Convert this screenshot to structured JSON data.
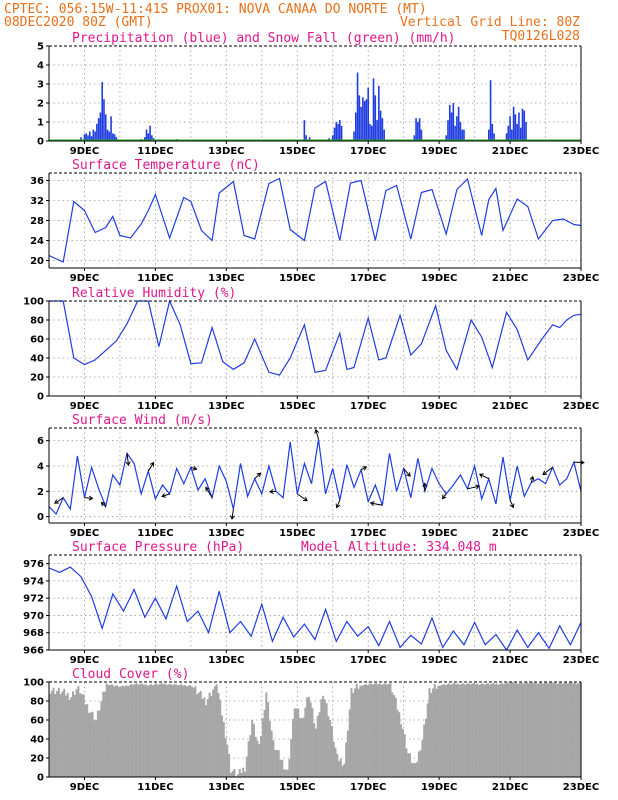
{
  "header": {
    "line1_left": "CPTEC:  056:15W-11:41S  PROX01: NOVA CANAA DO NORTE (MT)",
    "line2_left": "08DEC2020 80Z (GMT)",
    "line2_right": "Vertical Grid Line: 80Z",
    "line3_right": "TQ0126L028"
  },
  "colors": {
    "header": "#e8701a",
    "panel_title": "#e0178c",
    "series": "#1f3de0",
    "snow": "#22aa22",
    "cloud": "#a6a6a6"
  },
  "chart_data": [
    {
      "type": "bar",
      "id": "precip",
      "title": "Precipitation (blue) and Snow Fall (green) (mm/h)",
      "ylim": [
        0,
        5
      ],
      "yticks": [
        0,
        1,
        2,
        3,
        4,
        5
      ],
      "xticks": [
        "9DEC",
        "11DEC",
        "13DEC",
        "15DEC",
        "17DEC",
        "19DEC",
        "21DEC",
        "23DEC"
      ],
      "series": [
        {
          "name": "Precipitation",
          "points": [
            [
              0.8,
              0.05
            ],
            [
              0.9,
              0.2
            ],
            [
              1.0,
              0.35
            ],
            [
              1.05,
              0.4
            ],
            [
              1.1,
              0.3
            ],
            [
              1.15,
              0.5
            ],
            [
              1.2,
              0.25
            ],
            [
              1.25,
              0.6
            ],
            [
              1.3,
              0.5
            ],
            [
              1.35,
              0.9
            ],
            [
              1.4,
              1.2
            ],
            [
              1.45,
              1.5
            ],
            [
              1.5,
              3.1
            ],
            [
              1.55,
              2.2
            ],
            [
              1.6,
              1.4
            ],
            [
              1.65,
              0.6
            ],
            [
              1.7,
              0.5
            ],
            [
              1.75,
              1.3
            ],
            [
              1.8,
              0.4
            ],
            [
              1.85,
              0.35
            ],
            [
              1.9,
              0.2
            ],
            [
              2.6,
              0.1
            ],
            [
              2.7,
              0.2
            ],
            [
              2.75,
              0.6
            ],
            [
              2.8,
              0.4
            ],
            [
              2.85,
              0.8
            ],
            [
              2.9,
              0.3
            ],
            [
              2.95,
              0.15
            ],
            [
              3.6,
              0.1
            ],
            [
              3.7,
              0.05
            ],
            [
              4.1,
              0.05
            ],
            [
              7.2,
              1.1
            ],
            [
              7.25,
              0.3
            ],
            [
              7.35,
              0.2
            ],
            [
              7.9,
              0.15
            ],
            [
              8.0,
              0.3
            ],
            [
              8.05,
              0.7
            ],
            [
              8.1,
              1.0
            ],
            [
              8.15,
              0.9
            ],
            [
              8.2,
              1.1
            ],
            [
              8.25,
              0.8
            ],
            [
              8.6,
              0.5
            ],
            [
              8.65,
              1.5
            ],
            [
              8.7,
              3.6
            ],
            [
              8.75,
              2.4
            ],
            [
              8.8,
              1.8
            ],
            [
              8.85,
              2.3
            ],
            [
              8.9,
              2.1
            ],
            [
              8.95,
              2.2
            ],
            [
              9.0,
              2.8
            ],
            [
              9.05,
              0.9
            ],
            [
              9.1,
              0.8
            ],
            [
              9.15,
              3.3
            ],
            [
              9.2,
              2.4
            ],
            [
              9.25,
              1.1
            ],
            [
              9.3,
              2.9
            ],
            [
              9.35,
              1.6
            ],
            [
              9.4,
              1.2
            ],
            [
              9.45,
              0.6
            ],
            [
              10.3,
              0.3
            ],
            [
              10.35,
              1.2
            ],
            [
              10.4,
              1.0
            ],
            [
              10.45,
              1.2
            ],
            [
              10.5,
              0.6
            ],
            [
              11.2,
              0.3
            ],
            [
              11.25,
              1.1
            ],
            [
              11.3,
              1.9
            ],
            [
              11.35,
              1.5
            ],
            [
              11.4,
              2.0
            ],
            [
              11.45,
              0.8
            ],
            [
              11.5,
              1.3
            ],
            [
              11.55,
              1.8
            ],
            [
              11.6,
              1.0
            ],
            [
              11.65,
              0.6
            ],
            [
              11.7,
              0.6
            ],
            [
              12.4,
              0.6
            ],
            [
              12.45,
              3.2
            ],
            [
              12.5,
              0.9
            ],
            [
              12.55,
              0.4
            ],
            [
              12.9,
              0.4
            ],
            [
              12.95,
              0.8
            ],
            [
              13.0,
              1.3
            ],
            [
              13.05,
              0.6
            ],
            [
              13.1,
              1.8
            ],
            [
              13.15,
              1.4
            ],
            [
              13.2,
              0.9
            ],
            [
              13.25,
              1.5
            ],
            [
              13.3,
              0.7
            ],
            [
              13.35,
              1.7
            ],
            [
              13.4,
              1.6
            ],
            [
              13.45,
              1.0
            ]
          ]
        },
        {
          "name": "Snow Fall",
          "points": [
            [
              0.0,
              0.04
            ],
            [
              15.0,
              0.04
            ]
          ]
        }
      ]
    },
    {
      "type": "line",
      "id": "temperature",
      "title": "Surface Temperature (nC)",
      "ylim": [
        18.5,
        37.5
      ],
      "yticks": [
        20,
        24,
        28,
        32,
        36
      ],
      "xticks": [
        "9DEC",
        "11DEC",
        "13DEC",
        "15DEC",
        "17DEC",
        "19DEC",
        "21DEC",
        "23DEC"
      ],
      "x": [
        0,
        0.4,
        0.7,
        1.0,
        1.3,
        1.6,
        1.8,
        2.0,
        2.3,
        2.6,
        2.8,
        3.0,
        3.4,
        3.8,
        4.0,
        4.3,
        4.6,
        4.8,
        5.2,
        5.5,
        5.8,
        6.2,
        6.5,
        6.8,
        7.2,
        7.5,
        7.8,
        8.2,
        8.5,
        8.8,
        9.2,
        9.5,
        9.8,
        10.2,
        10.5,
        10.8,
        11.2,
        11.5,
        11.8,
        12.2,
        12.4,
        12.6,
        12.8,
        13.2,
        13.5,
        13.8,
        14.2,
        14.5,
        14.8,
        15.0
      ],
      "y": [
        21,
        19.7,
        31.8,
        30,
        25.6,
        26.6,
        28.8,
        25,
        24.5,
        27.3,
        30,
        33.2,
        24.5,
        32.6,
        31.8,
        26,
        24,
        33.5,
        35.8,
        25,
        24.3,
        35.4,
        36.4,
        26.2,
        24,
        34.5,
        35.8,
        24,
        35.5,
        36,
        24,
        34,
        35,
        24.3,
        33.6,
        34.2,
        25.3,
        34.2,
        36.3,
        25,
        32.2,
        34.4,
        26,
        32.3,
        30.8,
        24.3,
        28,
        28.3,
        27.2,
        27
      ]
    },
    {
      "type": "line",
      "id": "humidity",
      "title": "Relative Humidity (%)",
      "ylim": [
        0,
        100
      ],
      "yticks": [
        0,
        20,
        40,
        60,
        80,
        100
      ],
      "xticks": [
        "9DEC",
        "11DEC",
        "13DEC",
        "15DEC",
        "17DEC",
        "19DEC",
        "21DEC",
        "23DEC"
      ],
      "x": [
        0,
        0.4,
        0.7,
        1.0,
        1.3,
        1.6,
        1.9,
        2.2,
        2.5,
        2.8,
        3.1,
        3.4,
        3.7,
        4.0,
        4.3,
        4.6,
        4.9,
        5.2,
        5.5,
        5.8,
        6.2,
        6.5,
        6.8,
        7.2,
        7.5,
        7.8,
        8.2,
        8.4,
        8.6,
        9.0,
        9.3,
        9.5,
        9.9,
        10.2,
        10.5,
        10.9,
        11.2,
        11.5,
        11.9,
        12.2,
        12.5,
        12.9,
        13.2,
        13.5,
        13.9,
        14.2,
        14.4,
        14.6,
        14.8,
        15.0
      ],
      "y": [
        100,
        100,
        40,
        33,
        38,
        48,
        58,
        76,
        100,
        100,
        52,
        100,
        75,
        34,
        35,
        72,
        36,
        28,
        35,
        60,
        25,
        22,
        40,
        75,
        25,
        27,
        66,
        28,
        30,
        82,
        38,
        40,
        85,
        43,
        55,
        95,
        48,
        28,
        80,
        62,
        30,
        88,
        70,
        38,
        60,
        75,
        72,
        80,
        85,
        86
      ]
    },
    {
      "type": "line",
      "id": "wind",
      "title": "Surface Wind (m/s)",
      "ylim": [
        -0.5,
        7.0
      ],
      "yticks": [
        0,
        2,
        4,
        6
      ],
      "xticks": [
        "9DEC",
        "11DEC",
        "13DEC",
        "15DEC",
        "17DEC",
        "19DEC",
        "21DEC",
        "23DEC"
      ],
      "x": [
        0,
        0.2,
        0.4,
        0.6,
        0.8,
        1.0,
        1.2,
        1.4,
        1.6,
        1.8,
        2.0,
        2.2,
        2.4,
        2.6,
        2.8,
        3.0,
        3.2,
        3.4,
        3.6,
        3.8,
        4.0,
        4.2,
        4.4,
        4.6,
        4.8,
        5.0,
        5.2,
        5.4,
        5.6,
        5.8,
        6.0,
        6.2,
        6.4,
        6.6,
        6.8,
        7.0,
        7.2,
        7.4,
        7.6,
        7.8,
        8.0,
        8.2,
        8.4,
        8.6,
        8.8,
        9.0,
        9.2,
        9.4,
        9.6,
        9.8,
        10.0,
        10.2,
        10.4,
        10.6,
        10.8,
        11.0,
        11.2,
        11.4,
        11.6,
        11.8,
        12.0,
        12.2,
        12.4,
        12.6,
        12.8,
        13.0,
        13.2,
        13.4,
        13.6,
        13.8,
        14.0,
        14.2,
        14.4,
        14.6,
        14.8,
        15.0
      ],
      "y": [
        0.8,
        0.2,
        1.5,
        0.6,
        4.8,
        1.5,
        3.9,
        2.2,
        0.8,
        3.3,
        2.5,
        5.0,
        4.2,
        1.8,
        3.6,
        1.4,
        2.5,
        1.8,
        3.8,
        2.6,
        3.9,
        2.1,
        3.0,
        1.5,
        4.0,
        2.8,
        0.6,
        4.2,
        1.6,
        3.0,
        1.8,
        4.0,
        2.0,
        1.5,
        5.9,
        1.8,
        4.2,
        2.6,
        6.1,
        1.8,
        3.8,
        1.3,
        4.1,
        2.3,
        3.7,
        1.2,
        2.5,
        0.9,
        5.0,
        2.0,
        3.8,
        1.5,
        4.6,
        2.0,
        3.8,
        2.6,
        1.8,
        2.5,
        3.3,
        2.2,
        4.0,
        1.4,
        3.0,
        1.0,
        4.7,
        1.3,
        4.0,
        1.6,
        2.7,
        3.0,
        2.6,
        3.9,
        2.5,
        3.0,
        4.3,
        2.0
      ]
    },
    {
      "type": "line",
      "id": "pressure",
      "title": "Surface Pressure (hPa)",
      "annotation": "Model Altitude: 334.048 m",
      "ylim": [
        966,
        977
      ],
      "yticks": [
        966,
        968,
        970,
        972,
        974,
        976
      ],
      "xticks": [
        "9DEC",
        "11DEC",
        "13DEC",
        "15DEC",
        "17DEC",
        "19DEC",
        "21DEC",
        "23DEC"
      ],
      "x": [
        0,
        0.3,
        0.6,
        0.9,
        1.2,
        1.5,
        1.8,
        2.1,
        2.4,
        2.7,
        3.0,
        3.3,
        3.6,
        3.9,
        4.2,
        4.5,
        4.8,
        5.1,
        5.4,
        5.7,
        6.0,
        6.3,
        6.6,
        6.9,
        7.2,
        7.5,
        7.8,
        8.1,
        8.4,
        8.7,
        9.0,
        9.3,
        9.6,
        9.9,
        10.2,
        10.5,
        10.8,
        11.1,
        11.4,
        11.7,
        12.0,
        12.3,
        12.6,
        12.9,
        13.2,
        13.5,
        13.8,
        14.1,
        14.4,
        14.7,
        15.0
      ],
      "y": [
        975.5,
        975.0,
        975.6,
        974.5,
        972.2,
        968.5,
        972.5,
        970.5,
        973.0,
        969.8,
        972.0,
        969.6,
        973.4,
        969.3,
        970.5,
        968.0,
        972.8,
        968.0,
        969.3,
        967.6,
        971.3,
        967.0,
        969.8,
        967.5,
        969.0,
        967.2,
        970.7,
        967.0,
        969.3,
        967.6,
        968.7,
        966.5,
        969.3,
        966.3,
        967.7,
        966.7,
        969.7,
        966.3,
        968.2,
        966.6,
        969.2,
        966.6,
        967.8,
        966.0,
        968.3,
        966.3,
        968.0,
        966.2,
        968.8,
        966.6,
        969.2
      ]
    },
    {
      "type": "bar",
      "id": "cloud",
      "title": "Cloud Cover (%)",
      "ylim": [
        0,
        100
      ],
      "yticks": [
        0,
        20,
        40,
        60,
        80,
        100
      ],
      "xticks": [
        "9DEC",
        "11DEC",
        "13DEC",
        "15DEC",
        "17DEC",
        "19DEC",
        "21DEC",
        "23DEC"
      ],
      "x_start": 0,
      "x_step": 0.05,
      "anchors": [
        [
          0,
          92
        ],
        [
          0.3,
          90
        ],
        [
          0.6,
          85
        ],
        [
          0.8,
          95
        ],
        [
          1.0,
          78
        ],
        [
          1.3,
          60
        ],
        [
          1.6,
          98
        ],
        [
          2.0,
          95
        ],
        [
          2.4,
          98
        ],
        [
          2.8,
          97
        ],
        [
          3.2,
          98
        ],
        [
          3.6,
          97
        ],
        [
          4.0,
          96
        ],
        [
          4.4,
          80
        ],
        [
          4.7,
          98
        ],
        [
          5.0,
          35
        ],
        [
          5.1,
          8
        ],
        [
          5.3,
          2
        ],
        [
          5.5,
          10
        ],
        [
          5.7,
          60
        ],
        [
          5.9,
          30
        ],
        [
          6.1,
          90
        ],
        [
          6.3,
          35
        ],
        [
          6.5,
          20
        ],
        [
          6.7,
          5
        ],
        [
          6.9,
          75
        ],
        [
          7.1,
          60
        ],
        [
          7.3,
          88
        ],
        [
          7.5,
          50
        ],
        [
          7.7,
          90
        ],
        [
          7.9,
          60
        ],
        [
          8.1,
          20
        ],
        [
          8.3,
          15
        ],
        [
          8.5,
          90
        ],
        [
          8.8,
          97
        ],
        [
          9.2,
          98
        ],
        [
          9.6,
          98
        ],
        [
          9.9,
          60
        ],
        [
          10.1,
          25
        ],
        [
          10.3,
          10
        ],
        [
          10.5,
          40
        ],
        [
          10.7,
          90
        ],
        [
          11.0,
          97
        ],
        [
          11.4,
          98
        ],
        [
          11.8,
          98
        ],
        [
          12.2,
          98
        ],
        [
          12.6,
          98
        ],
        [
          13.0,
          99
        ],
        [
          13.5,
          99
        ],
        [
          14.0,
          99
        ],
        [
          14.5,
          99
        ],
        [
          15.0,
          99
        ]
      ]
    }
  ]
}
